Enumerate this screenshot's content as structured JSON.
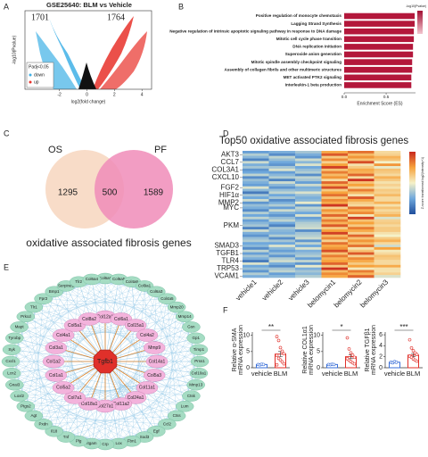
{
  "panels": [
    "A",
    "B",
    "C",
    "D",
    "E",
    "F"
  ],
  "volcano": {
    "title": "GSE25640: BLM vs Vehicle",
    "down_count": "1701",
    "up_count": "1764",
    "y_label": "-log10(Pvalue)",
    "x_label": "log2(fold change)",
    "xlim": [
      -4.5,
      4.7
    ],
    "xticks": [
      -2,
      0,
      2,
      4
    ],
    "legend_title": "Padj<0.05",
    "legend_items": [
      "down",
      "up"
    ],
    "colors": [
      "#3fb0e6",
      "#e8312a"
    ]
  },
  "chart_data": [
    {
      "type": "barh",
      "categories": [
        "Positive regulation of monocyte chemotaxis",
        "Lagging Strand Synthesis",
        "Negative regulation of intrinsic apoptotic signaling pathway in response to DNA damage",
        "Mitotic cell cycle phase transition",
        "DNA replication initiation",
        "Superoxide anion generation",
        "Mitotic spindle assembly checkpoint signaling",
        "Assembly of collagen fibrils and other multimeric structures",
        "MET activated PTK2 signaling",
        "Interleukin-1 beta production"
      ],
      "values": [
        0.84,
        0.84,
        0.83,
        0.83,
        0.82,
        0.82,
        0.81,
        0.81,
        0.8,
        0.8
      ],
      "label_colors": [
        "#222",
        "#222",
        "#222",
        "#222",
        "#222",
        "#e0302a",
        "#222",
        "#e0302a",
        "#222",
        "#222"
      ],
      "color": "#b3173b",
      "xlim": [
        0,
        0.85
      ],
      "xticks": [
        {
          "value": 0,
          "label": "0.0"
        },
        0.5
      ],
      "x_label": "Enrichment Score (ES)",
      "colorbar_title": "-log10(Pvalue)"
    },
    {
      "type": "bar",
      "y_label": [
        "Relative α-SMA",
        "mRNA expression"
      ],
      "categories": [
        "vehicle",
        "BLM"
      ],
      "values": [
        1.0,
        4.2
      ],
      "errors": [
        0.15,
        0.8
      ],
      "points": [
        [
          1.0,
          0.9,
          1.1,
          1.0
        ],
        [
          9.6,
          8.4,
          6.2,
          5.1,
          4.3,
          3.8,
          2.9,
          2.4,
          1.8,
          1.2,
          0.9
        ]
      ],
      "colors": [
        "#3a6fd8",
        "#e0302a"
      ],
      "significance": "**",
      "ylim": [
        0,
        11
      ],
      "yticks": [
        0,
        5,
        10
      ]
    },
    {
      "type": "bar",
      "y_label": [
        "Relative COL1α1",
        "mRNA expression"
      ],
      "categories": [
        "vehicle",
        "BLM"
      ],
      "values": [
        1.0,
        3.4
      ],
      "errors": [
        0.1,
        0.6
      ],
      "points": [
        [
          1.0,
          0.95,
          1.05,
          1.0
        ],
        [
          9.2,
          5.8,
          4.6,
          3.9,
          3.2,
          2.8,
          2.3,
          1.9,
          1.5,
          1.2
        ]
      ],
      "colors": [
        "#3a6fd8",
        "#e0302a"
      ],
      "significance": "*",
      "ylim": [
        0,
        11
      ],
      "yticks": [
        0,
        5,
        10
      ]
    },
    {
      "type": "bar",
      "y_label": [
        "Relative TGFβ1",
        "mRNA expression"
      ],
      "categories": [
        "vehicle",
        "BLM"
      ],
      "values": [
        1.0,
        2.3
      ],
      "errors": [
        0.1,
        0.3
      ],
      "points": [
        [
          1.0,
          0.9,
          1.1,
          1.0
        ],
        [
          5.1,
          3.6,
          3.1,
          2.7,
          2.4,
          2.1,
          1.9,
          1.6,
          1.4,
          1.2
        ]
      ],
      "colors": [
        "#3a6fd8",
        "#e0302a"
      ],
      "significance": "***",
      "ylim": [
        0,
        6.5
      ],
      "yticks": [
        0,
        2,
        4,
        6
      ]
    }
  ],
  "venn": {
    "sets": [
      "OS",
      "PF"
    ],
    "counts": [
      1295,
      500,
      1589
    ],
    "colors": [
      "#f8dcc8",
      "#f08cb8"
    ],
    "caption": "oxidative associated fibrosis genes"
  },
  "heatmap": {
    "title": "Top50 oxidative associated fibrosis genes",
    "columns": [
      "vehicle1",
      "vehicle2",
      "vehicle3",
      "belomycin1",
      "belomycin2",
      "belomycin3"
    ],
    "row_labels": [
      null,
      "AKT3",
      null,
      null,
      "CCL7",
      null,
      null,
      "COL3A1",
      null,
      null,
      "CXCL10",
      null,
      null,
      null,
      "FGF2",
      null,
      null,
      "HIF1α",
      null,
      null,
      "MMP2",
      null,
      "MYC",
      null,
      null,
      null,
      null,
      null,
      null,
      "PKM",
      null,
      null,
      null,
      null,
      null,
      null,
      null,
      "SMAD3",
      null,
      null,
      "TGFB1",
      null,
      null,
      "TLR4",
      null,
      null,
      "TRP53",
      null,
      null,
      "VCAM1"
    ],
    "highlight_label": "TGFB1",
    "highlight_color": "#e0302a",
    "colorbar_title": "Z-score transformed log2(Intensity+1)",
    "zlim": [
      -2,
      2
    ],
    "values": [
      [
        -1.1,
        -0.9,
        -0.6,
        0.9,
        1.4,
        0.3
      ],
      [
        -0.5,
        -1.3,
        -0.9,
        1.6,
        0.7,
        0.4
      ],
      [
        -0.8,
        -0.4,
        -1.2,
        0.5,
        1.1,
        0.8
      ],
      [
        -1.4,
        -0.7,
        -0.3,
        1.2,
        0.6,
        0.6
      ],
      [
        -0.3,
        -1.0,
        -0.8,
        0.4,
        1.7,
        0.0
      ],
      [
        -0.9,
        -1.2,
        -0.2,
        1.0,
        0.2,
        1.1
      ],
      [
        -0.6,
        -0.6,
        -1.0,
        1.8,
        0.5,
        -0.1
      ],
      [
        -1.2,
        -0.2,
        -0.7,
        0.6,
        0.9,
        0.6
      ],
      [
        -1.0,
        -1.1,
        -0.5,
        1.3,
        0.8,
        0.5
      ],
      [
        -0.4,
        -0.8,
        -1.3,
        0.7,
        1.5,
        0.3
      ],
      [
        -1.3,
        -0.5,
        -0.4,
        1.1,
        0.3,
        0.8
      ],
      [
        -0.7,
        -1.4,
        -0.6,
        0.3,
        1.9,
        0.5
      ],
      [
        -0.9,
        -0.3,
        -1.1,
        1.5,
        0.6,
        0.2
      ],
      [
        -1.1,
        -0.8,
        -0.3,
        0.8,
        1.0,
        0.4
      ],
      [
        -0.2,
        -1.2,
        -0.9,
        1.7,
        0.4,
        0.2
      ],
      [
        -0.8,
        -0.7,
        -0.8,
        0.5,
        1.3,
        0.5
      ],
      [
        -1.5,
        -0.4,
        -0.2,
        1.0,
        0.7,
        0.4
      ],
      [
        -0.6,
        -1.0,
        -0.7,
        1.4,
        0.2,
        0.7
      ],
      [
        -1.0,
        -0.6,
        -0.9,
        0.6,
        1.6,
        0.3
      ],
      [
        -0.3,
        -1.3,
        -0.8,
        1.2,
        0.9,
        0.3
      ],
      [
        -1.2,
        -0.9,
        -0.1,
        0.9,
        0.5,
        0.8
      ],
      [
        -0.7,
        -0.5,
        -1.2,
        1.9,
        0.3,
        0.2
      ],
      [
        -0.9,
        -1.1,
        -0.4,
        0.4,
        1.4,
        0.6
      ],
      [
        -1.3,
        -0.3,
        -0.6,
        1.1,
        0.8,
        0.3
      ],
      [
        -0.5,
        -0.9,
        -1.0,
        0.7,
        1.2,
        0.5
      ],
      [
        -1.0,
        -1.2,
        -0.2,
        1.5,
        0.1,
        0.8
      ],
      [
        -0.4,
        -0.7,
        -1.1,
        0.6,
        1.8,
        -0.2
      ],
      [
        -1.1,
        -0.4,
        -0.8,
        1.3,
        0.6,
        0.4
      ],
      [
        -0.8,
        -1.0,
        -0.5,
        0.8,
        1.0,
        0.5
      ],
      [
        -0.6,
        -1.4,
        -0.4,
        1.6,
        0.5,
        0.3
      ],
      [
        -1.4,
        -0.6,
        -0.3,
        0.5,
        1.3,
        0.5
      ],
      [
        -0.3,
        -0.8,
        -1.3,
        1.0,
        0.9,
        0.5
      ],
      [
        -0.9,
        -0.9,
        -0.6,
        1.8,
        0.4,
        0.2
      ],
      [
        -1.2,
        -0.5,
        -0.5,
        0.7,
        1.5,
        0.0
      ],
      [
        -0.7,
        -1.3,
        -0.3,
        1.2,
        0.6,
        0.5
      ],
      [
        -0.5,
        -0.6,
        -1.2,
        0.4,
        1.1,
        0.8
      ],
      [
        -1.0,
        -1.0,
        -0.4,
        1.4,
        0.7,
        0.3
      ],
      [
        -0.8,
        -0.2,
        -1.0,
        0.9,
        1.4,
        -0.3
      ],
      [
        -1.3,
        -0.8,
        -0.2,
        1.1,
        0.2,
        1.0
      ],
      [
        -0.4,
        -1.1,
        -0.9,
        1.7,
        0.6,
        0.1
      ],
      [
        -1.1,
        -0.7,
        -0.7,
        0.6,
        1.6,
        0.3
      ],
      [
        -0.6,
        -1.2,
        -0.5,
        1.3,
        0.4,
        0.6
      ],
      [
        -0.9,
        -0.5,
        -1.1,
        0.8,
        1.2,
        0.5
      ],
      [
        -1.5,
        -0.3,
        -0.4,
        1.0,
        0.9,
        0.3
      ],
      [
        -0.2,
        -0.9,
        -1.2,
        1.5,
        0.5,
        0.3
      ],
      [
        -1.0,
        -1.3,
        -0.1,
        0.5,
        1.0,
        0.9
      ],
      [
        -0.7,
        -0.6,
        -0.9,
        1.9,
        0.1,
        0.2
      ],
      [
        -1.2,
        -0.4,
        -0.6,
        0.7,
        1.3,
        0.2
      ],
      [
        -0.5,
        -1.1,
        -0.8,
        1.2,
        0.8,
        0.4
      ],
      [
        -0.9,
        -0.8,
        -0.5,
        0.9,
        1.5,
        -0.2
      ]
    ]
  },
  "network": {
    "hub": "Tgfb1",
    "inner": [
      "Col12a1",
      "Col6a1",
      "Col15a1",
      "Col4a2",
      "Mmp9",
      "Col14a1",
      "Col5a3",
      "Col11a1",
      "Col24a1",
      "Col11a2",
      "Col27a1",
      "Col18a1",
      "Col7a1",
      "Col5a2",
      "Col1a1",
      "Col1a2",
      "Col3a1",
      "Col4a1",
      "Col5a1",
      "Col8a2"
    ],
    "outer": [
      "Col6a6",
      "Col6a5",
      "Col4a6",
      "Col9a1",
      "Col6a3",
      "Col4a5",
      "Mmp20",
      "Mmp14",
      "Gsn",
      "Gp1",
      "Timp1",
      "Prss1",
      "Col10a1",
      "Mmp13",
      "Ctsk",
      "Lum",
      "Ctss",
      "Ccl2",
      "Egf",
      "Sod3",
      "Fbn1",
      "Lox",
      "Crp",
      "Itgam",
      "Plg",
      "Tnf",
      "Il18",
      "Pxdn",
      "Agt",
      "Ptgs2",
      "Loxl2",
      "Gnai3",
      "Lcn2",
      "Cxcl1",
      "Syk",
      "Tyrobp",
      "Mapt",
      "Prkcd",
      "Tlr1",
      "Fpr2",
      "Bmp1",
      "Serpine1",
      "Tlr2",
      "Col6a4"
    ]
  }
}
